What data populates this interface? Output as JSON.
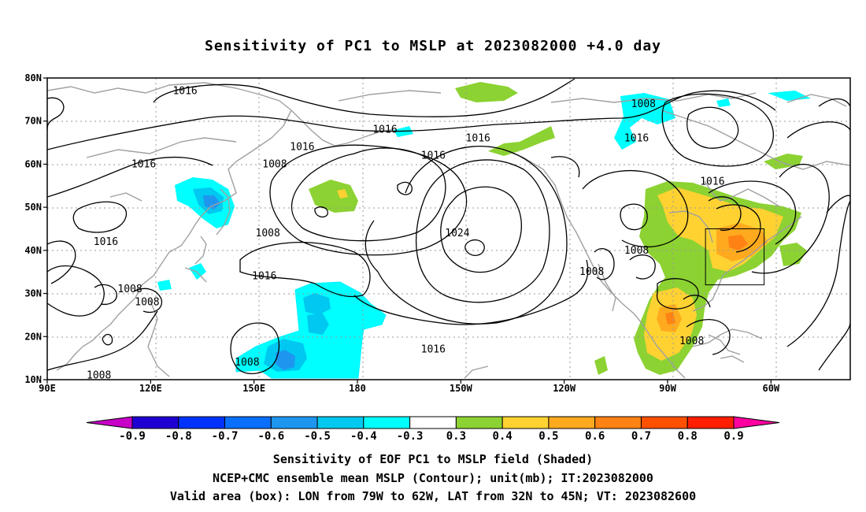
{
  "title": "Sensitivity of PC1 to MSLP at 2023082000 +4.0 day",
  "map": {
    "lat_ticks": [
      "80N",
      "70N",
      "60N",
      "50N",
      "40N",
      "30N",
      "20N",
      "10N"
    ],
    "lon_ticks": [
      "90E",
      "120E",
      "150E",
      "180",
      "150W",
      "120W",
      "90W",
      "60W"
    ],
    "isobar_labels": [
      {
        "text": "1016",
        "lon": 130,
        "lat": 77
      },
      {
        "text": "1016",
        "lon": 188,
        "lat": 68
      },
      {
        "text": "1016",
        "lon": 215,
        "lat": 66
      },
      {
        "text": "1016",
        "lon": 261,
        "lat": 66
      },
      {
        "text": "1016",
        "lon": 164,
        "lat": 64
      },
      {
        "text": "1016",
        "lon": 118,
        "lat": 60
      },
      {
        "text": "1016",
        "lon": 202,
        "lat": 62
      },
      {
        "text": "1008",
        "lon": 263,
        "lat": 74
      },
      {
        "text": "1008",
        "lon": 156,
        "lat": 60
      },
      {
        "text": "1024",
        "lon": 209,
        "lat": 44
      },
      {
        "text": "1008",
        "lon": 154,
        "lat": 44
      },
      {
        "text": "1016",
        "lon": 107,
        "lat": 42
      },
      {
        "text": "1016",
        "lon": 283,
        "lat": 56
      },
      {
        "text": "1008",
        "lon": 261,
        "lat": 40
      },
      {
        "text": "1008",
        "lon": 248,
        "lat": 35
      },
      {
        "text": "1016",
        "lon": 153,
        "lat": 34
      },
      {
        "text": "1008",
        "lon": 114,
        "lat": 31
      },
      {
        "text": "1008",
        "lon": 119,
        "lat": 28
      },
      {
        "text": "1016",
        "lon": 202,
        "lat": 17
      },
      {
        "text": "1008",
        "lon": 277,
        "lat": 19
      },
      {
        "text": "1008",
        "lon": 148,
        "lat": 14
      },
      {
        "text": "1008",
        "lon": 105,
        "lat": 11
      }
    ],
    "valid_box": {
      "lon_min": 281,
      "lon_max": 298,
      "lat_min": 32,
      "lat_max": 45
    }
  },
  "colorbar": {
    "labels": [
      "-0.9",
      "-0.8",
      "-0.7",
      "-0.6",
      "-0.5",
      "-0.4",
      "-0.3",
      "0.3",
      "0.4",
      "0.5",
      "0.6",
      "0.7",
      "0.8",
      "0.9"
    ],
    "colors": [
      "#c800c8",
      "#1e00d2",
      "#0032ff",
      "#0a6eff",
      "#1e96f0",
      "#00c8f0",
      "#00ffff",
      "#ffffff",
      "#8cd232",
      "#ffd232",
      "#ffaa1e",
      "#ff8214",
      "#ff5000",
      "#ff1e00",
      "#ff00a0"
    ]
  },
  "caption": {
    "line1": "Sensitivity of EOF PC1 to MSLP field (Shaded)",
    "line2": "NCEP+CMC ensemble mean MSLP (Contour); unit(mb); IT:2023082000",
    "line3": "Valid area (box): LON from 79W to 62W, LAT from 32N to 45N; VT: 2023082600"
  }
}
